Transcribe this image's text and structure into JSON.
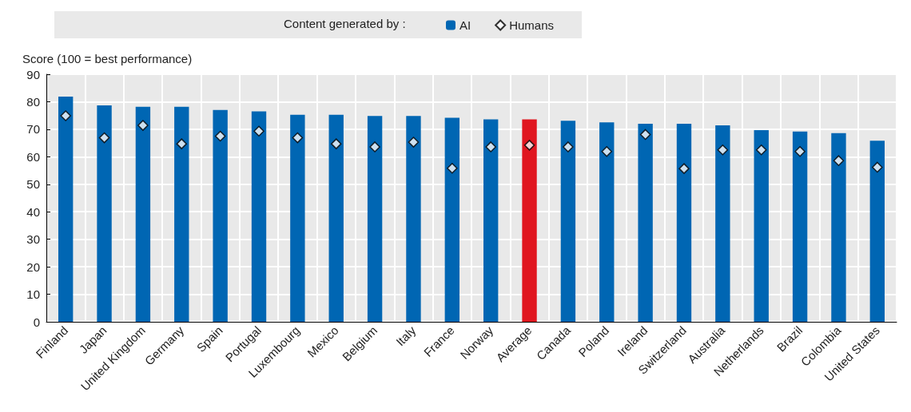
{
  "chart_data": {
    "type": "bar",
    "ylabel": "Score (100 = best performance)",
    "legend_title": "Content generated by :",
    "categories": [
      "Finland",
      "Japan",
      "United Kingdom",
      "Germany",
      "Spain",
      "Portugal",
      "Luxembourg",
      "Mexico",
      "Belgium",
      "Italy",
      "France",
      "Norway",
      "Average",
      "Canada",
      "Poland",
      "Ireland",
      "Switzerland",
      "Australia",
      "Netherlands",
      "Brazil",
      "Colombia",
      "United States"
    ],
    "series": [
      {
        "name": "AI",
        "color": "#0066b3",
        "colors": [
          "#0066b3",
          "#0066b3",
          "#0066b3",
          "#0066b3",
          "#0066b3",
          "#0066b3",
          "#0066b3",
          "#0066b3",
          "#0066b3",
          "#0066b3",
          "#0066b3",
          "#0066b3",
          "#e0161f",
          "#0066b3",
          "#0066b3",
          "#0066b3",
          "#0066b3",
          "#0066b3",
          "#0066b3",
          "#0066b3",
          "#0066b3",
          "#0066b3"
        ],
        "values": [
          81.9,
          78.7,
          78.2,
          78.2,
          77.0,
          76.5,
          75.3,
          75.3,
          74.8,
          74.8,
          74.2,
          73.6,
          73.6,
          73.1,
          72.5,
          72.0,
          72.0,
          71.4,
          69.7,
          69.2,
          68.6,
          65.8
        ]
      },
      {
        "name": "Humans",
        "type": "scatter",
        "color": "#ffffff",
        "marker": "diamond",
        "values": [
          74.9,
          66.9,
          71.4,
          64.7,
          67.5,
          69.3,
          66.9,
          64.7,
          63.6,
          65.3,
          55.8,
          63.6,
          64.2,
          63.6,
          61.9,
          68.1,
          55.7,
          62.5,
          62.5,
          61.9,
          58.6,
          56.2
        ]
      }
    ],
    "ylim": [
      0,
      90
    ],
    "yticks": [
      0,
      10,
      20,
      30,
      40,
      50,
      60,
      70,
      80,
      90
    ],
    "grid": true,
    "legend": "top"
  }
}
